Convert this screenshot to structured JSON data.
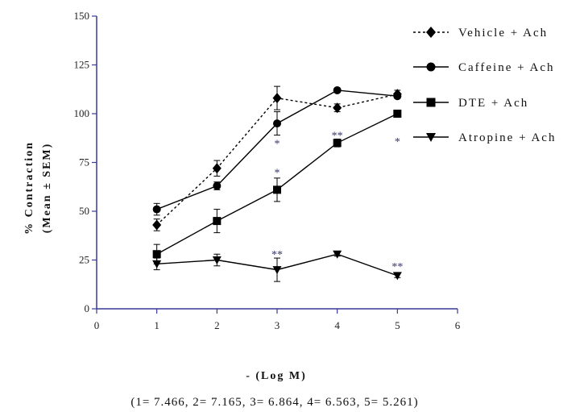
{
  "chart_data": {
    "type": "line",
    "title": "",
    "xlabel": "- (Log M)",
    "ylabel": "% Contraction",
    "ylabel_line2": "(Mean ± SEM)",
    "x_note": "(1= 7.466, 2= 7.165, 3= 6.864, 4= 6.563, 5= 5.261)",
    "xlim": [
      0,
      6
    ],
    "ylim": [
      0,
      150
    ],
    "x_ticks": [
      0,
      1,
      2,
      3,
      4,
      5,
      6
    ],
    "y_ticks": [
      0,
      25,
      50,
      75,
      100,
      125,
      150
    ],
    "grid": false,
    "legend_position": "top-right",
    "axis_color": "#3a3a9a",
    "series": [
      {
        "name": "Vehicle + Ach",
        "marker": "diamond",
        "line_style": "dotted",
        "color": "#000000",
        "x": [
          1,
          2,
          3,
          4,
          5
        ],
        "values": [
          43,
          72,
          108,
          103,
          110
        ],
        "errors": [
          3,
          4,
          6,
          2,
          2
        ]
      },
      {
        "name": "Caffeine + Ach",
        "marker": "circle",
        "line_style": "solid",
        "color": "#000000",
        "x": [
          1,
          2,
          3,
          4,
          5
        ],
        "values": [
          51,
          63,
          95,
          112,
          109
        ],
        "errors": [
          3,
          2,
          6,
          1,
          1
        ]
      },
      {
        "name": "DTE + Ach",
        "marker": "square",
        "line_style": "solid",
        "color": "#000000",
        "x": [
          1,
          2,
          3,
          4,
          5
        ],
        "values": [
          28,
          45,
          61,
          85,
          100
        ],
        "errors": [
          5,
          6,
          6,
          2,
          1
        ]
      },
      {
        "name": "Atropine + Ach",
        "marker": "triangle-down",
        "line_style": "solid",
        "color": "#000000",
        "x": [
          1,
          2,
          3,
          4,
          5
        ],
        "values": [
          23,
          25,
          20,
          28,
          17
        ],
        "errors": [
          3,
          3,
          6,
          1,
          1
        ]
      }
    ],
    "annotations": [
      {
        "x": 3,
        "y": 85,
        "text": "*"
      },
      {
        "x": 3,
        "y": 70,
        "text": "*"
      },
      {
        "x": 3,
        "y": 28,
        "text": "**"
      },
      {
        "x": 4,
        "y": 89,
        "text": "**"
      },
      {
        "x": 5,
        "y": 86,
        "text": "*"
      },
      {
        "x": 5,
        "y": 22,
        "text": "**"
      }
    ]
  }
}
